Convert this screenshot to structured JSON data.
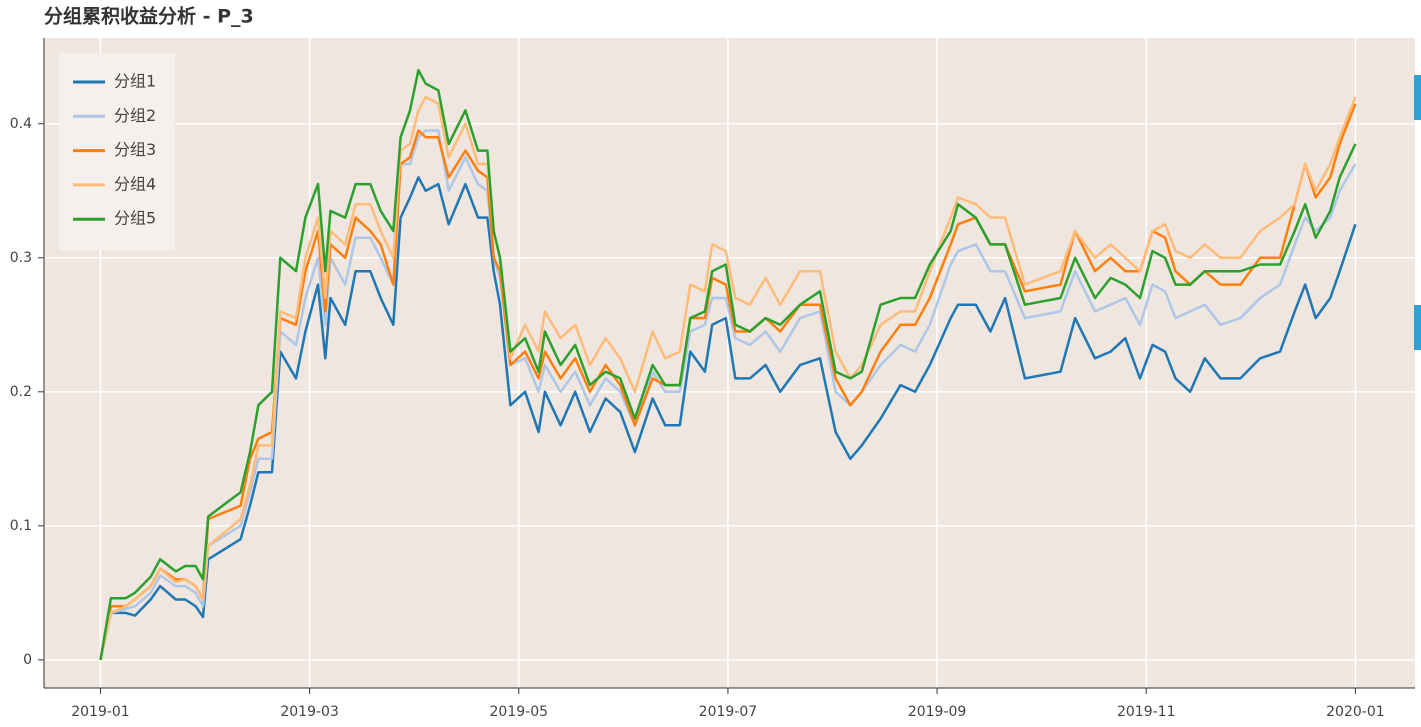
{
  "chart_data": {
    "type": "line",
    "title": "分组累积收益分析 - P_3",
    "x": [
      0,
      0.1,
      0.24,
      0.33,
      0.48,
      0.57,
      0.72,
      0.81,
      0.91,
      0.98,
      1.03,
      1.34,
      1.43,
      1.51,
      1.64,
      1.72,
      1.87,
      1.96,
      2.08,
      2.15,
      2.2,
      2.34,
      2.44,
      2.58,
      2.68,
      2.8,
      2.87,
      2.96,
      3.04,
      3.11,
      3.23,
      3.33,
      3.49,
      3.61,
      3.7,
      3.76,
      3.82,
      3.92,
      4.06,
      4.19,
      4.25,
      4.4,
      4.54,
      4.68,
      4.83,
      4.97,
      5.11,
      5.28,
      5.4,
      5.54,
      5.64,
      5.78,
      5.85,
      5.98,
      6.07,
      6.21,
      6.36,
      6.5,
      6.69,
      6.88,
      7.03,
      7.17,
      7.28,
      7.46,
      7.65,
      7.79,
      7.93,
      8.13,
      8.2,
      8.37,
      8.51,
      8.65,
      8.84,
      9.18,
      9.32,
      9.51,
      9.66,
      9.8,
      9.94,
      10.06,
      10.18,
      10.28,
      10.42,
      10.56,
      10.71,
      10.9,
      11.09,
      11.28,
      11.42,
      11.52,
      11.62,
      11.76,
      11.85,
      12.0
    ],
    "series": [
      {
        "name": "分组1",
        "color": "#1f77b4",
        "values": [
          0,
          0.035,
          0.035,
          0.033,
          0.045,
          0.055,
          0.045,
          0.045,
          0.04,
          0.032,
          0.075,
          0.09,
          0.115,
          0.14,
          0.14,
          0.23,
          0.21,
          0.245,
          0.28,
          0.225,
          0.27,
          0.25,
          0.29,
          0.29,
          0.27,
          0.25,
          0.33,
          0.345,
          0.36,
          0.35,
          0.355,
          0.325,
          0.355,
          0.33,
          0.33,
          0.29,
          0.265,
          0.19,
          0.2,
          0.17,
          0.2,
          0.175,
          0.2,
          0.17,
          0.195,
          0.185,
          0.155,
          0.195,
          0.175,
          0.175,
          0.23,
          0.215,
          0.25,
          0.255,
          0.21,
          0.21,
          0.22,
          0.2,
          0.22,
          0.225,
          0.17,
          0.15,
          0.16,
          0.18,
          0.205,
          0.2,
          0.22,
          0.255,
          0.265,
          0.265,
          0.245,
          0.27,
          0.21,
          0.215,
          0.255,
          0.225,
          0.23,
          0.24,
          0.21,
          0.235,
          0.23,
          0.21,
          0.2,
          0.225,
          0.21,
          0.21,
          0.225,
          0.23,
          0.26,
          0.28,
          0.255,
          0.27,
          0.29,
          0.325
        ]
      },
      {
        "name": "分组2",
        "color": "#aec7e8",
        "values": [
          0,
          0.035,
          0.038,
          0.04,
          0.05,
          0.063,
          0.055,
          0.055,
          0.05,
          0.04,
          0.085,
          0.1,
          0.125,
          0.15,
          0.15,
          0.245,
          0.235,
          0.27,
          0.3,
          0.25,
          0.3,
          0.28,
          0.315,
          0.315,
          0.3,
          0.28,
          0.37,
          0.37,
          0.39,
          0.395,
          0.395,
          0.35,
          0.375,
          0.355,
          0.35,
          0.3,
          0.285,
          0.22,
          0.225,
          0.2,
          0.22,
          0.2,
          0.215,
          0.19,
          0.21,
          0.2,
          0.175,
          0.215,
          0.2,
          0.2,
          0.245,
          0.25,
          0.27,
          0.27,
          0.24,
          0.235,
          0.245,
          0.23,
          0.255,
          0.26,
          0.2,
          0.19,
          0.2,
          0.22,
          0.235,
          0.23,
          0.25,
          0.295,
          0.305,
          0.31,
          0.29,
          0.29,
          0.255,
          0.26,
          0.29,
          0.26,
          0.265,
          0.27,
          0.25,
          0.28,
          0.275,
          0.255,
          0.26,
          0.265,
          0.25,
          0.255,
          0.27,
          0.28,
          0.31,
          0.33,
          0.32,
          0.33,
          0.35,
          0.37
        ]
      },
      {
        "name": "分组3",
        "color": "#ff7f0e",
        "values": [
          0,
          0.04,
          0.04,
          0.045,
          0.055,
          0.068,
          0.06,
          0.06,
          0.055,
          0.045,
          0.105,
          0.115,
          0.15,
          0.165,
          0.17,
          0.255,
          0.25,
          0.29,
          0.32,
          0.26,
          0.31,
          0.3,
          0.33,
          0.32,
          0.31,
          0.28,
          0.37,
          0.375,
          0.395,
          0.39,
          0.39,
          0.36,
          0.38,
          0.365,
          0.36,
          0.3,
          0.29,
          0.22,
          0.23,
          0.21,
          0.23,
          0.21,
          0.225,
          0.2,
          0.22,
          0.205,
          0.175,
          0.21,
          0.205,
          0.205,
          0.255,
          0.255,
          0.285,
          0.28,
          0.245,
          0.245,
          0.255,
          0.245,
          0.265,
          0.265,
          0.21,
          0.19,
          0.2,
          0.23,
          0.25,
          0.25,
          0.27,
          0.31,
          0.325,
          0.33,
          0.31,
          0.31,
          0.275,
          0.28,
          0.32,
          0.29,
          0.3,
          0.29,
          0.29,
          0.32,
          0.315,
          0.29,
          0.28,
          0.29,
          0.28,
          0.28,
          0.3,
          0.3,
          0.34,
          0.37,
          0.345,
          0.36,
          0.385,
          0.415
        ]
      },
      {
        "name": "分组4",
        "color": "#ffbb78",
        "values": [
          0,
          0.035,
          0.04,
          0.045,
          0.055,
          0.068,
          0.058,
          0.06,
          0.055,
          0.045,
          0.085,
          0.105,
          0.13,
          0.16,
          0.16,
          0.26,
          0.255,
          0.3,
          0.33,
          0.27,
          0.32,
          0.31,
          0.34,
          0.34,
          0.32,
          0.3,
          0.38,
          0.385,
          0.41,
          0.42,
          0.415,
          0.375,
          0.4,
          0.37,
          0.37,
          0.32,
          0.3,
          0.225,
          0.25,
          0.23,
          0.26,
          0.24,
          0.25,
          0.22,
          0.24,
          0.225,
          0.2,
          0.245,
          0.225,
          0.23,
          0.28,
          0.275,
          0.31,
          0.305,
          0.27,
          0.265,
          0.285,
          0.265,
          0.29,
          0.29,
          0.23,
          0.21,
          0.22,
          0.25,
          0.26,
          0.26,
          0.29,
          0.33,
          0.345,
          0.34,
          0.33,
          0.33,
          0.28,
          0.29,
          0.32,
          0.3,
          0.31,
          0.3,
          0.29,
          0.32,
          0.325,
          0.305,
          0.3,
          0.31,
          0.3,
          0.3,
          0.32,
          0.33,
          0.34,
          0.37,
          0.35,
          0.37,
          0.39,
          0.42
        ]
      },
      {
        "name": "分组5",
        "color": "#2ca02c",
        "values": [
          0,
          0.046,
          0.046,
          0.05,
          0.062,
          0.075,
          0.066,
          0.07,
          0.07,
          0.06,
          0.107,
          0.125,
          0.155,
          0.19,
          0.2,
          0.3,
          0.29,
          0.33,
          0.355,
          0.29,
          0.335,
          0.33,
          0.355,
          0.355,
          0.335,
          0.32,
          0.39,
          0.41,
          0.44,
          0.43,
          0.425,
          0.385,
          0.41,
          0.38,
          0.38,
          0.32,
          0.3,
          0.23,
          0.24,
          0.215,
          0.245,
          0.22,
          0.235,
          0.205,
          0.215,
          0.21,
          0.18,
          0.22,
          0.205,
          0.205,
          0.255,
          0.26,
          0.29,
          0.295,
          0.25,
          0.245,
          0.255,
          0.25,
          0.265,
          0.275,
          0.215,
          0.21,
          0.215,
          0.265,
          0.27,
          0.27,
          0.295,
          0.32,
          0.34,
          0.33,
          0.31,
          0.31,
          0.265,
          0.27,
          0.3,
          0.27,
          0.285,
          0.28,
          0.27,
          0.305,
          0.3,
          0.28,
          0.28,
          0.29,
          0.29,
          0.29,
          0.295,
          0.295,
          0.32,
          0.34,
          0.315,
          0.335,
          0.36,
          0.385
        ]
      }
    ],
    "xlim": [
      -0.54,
      12.57
    ],
    "xticks": [
      {
        "value": 0,
        "label": "2019-01"
      },
      {
        "value": 2,
        "label": "2019-03"
      },
      {
        "value": 4,
        "label": "2019-05"
      },
      {
        "value": 6,
        "label": "2019-07"
      },
      {
        "value": 8,
        "label": "2019-09"
      },
      {
        "value": 10,
        "label": "2019-11"
      },
      {
        "value": 12,
        "label": "2020-01"
      }
    ],
    "ylim": [
      -0.021,
      0.464
    ],
    "yticks": [
      0,
      0.1,
      0.2,
      0.3,
      0.4
    ],
    "grid": true,
    "legend": "top-left"
  }
}
